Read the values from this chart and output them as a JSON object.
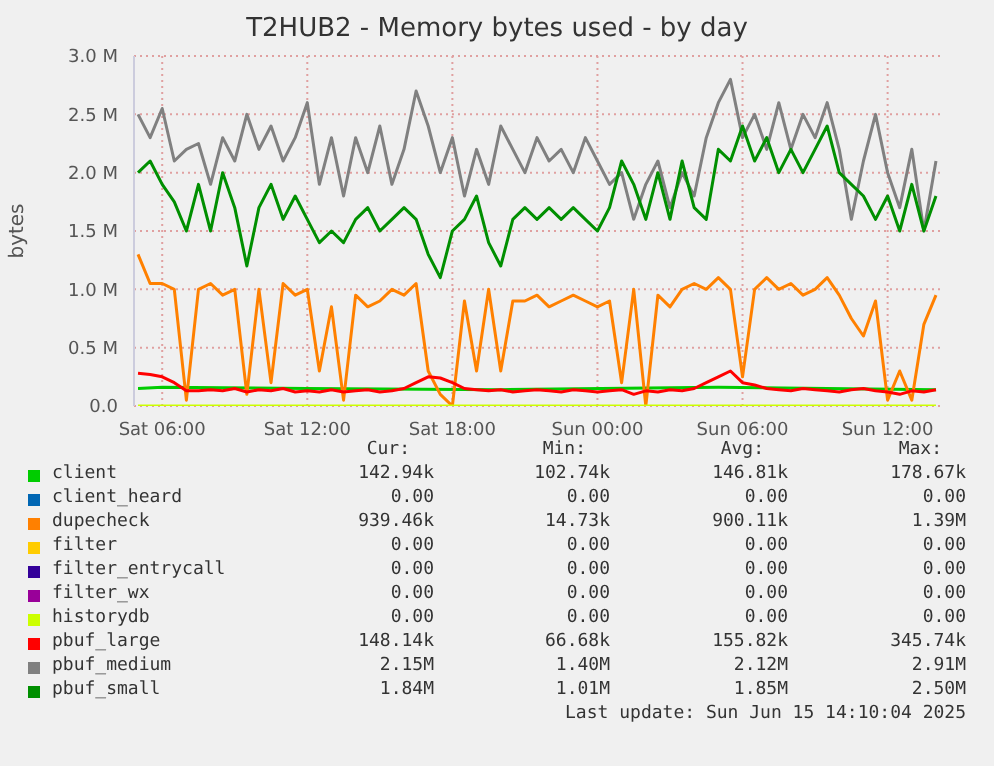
{
  "chart_data": {
    "type": "line",
    "title": "T2HUB2 - Memory bytes used - by day",
    "ylabel": "bytes",
    "xlim": [
      "2025-06-14T04:50",
      "2025-06-15T14:10"
    ],
    "xticks": [
      {
        "value": "2025-06-14T06:00",
        "label": "Sat 06:00"
      },
      {
        "value": "2025-06-14T12:00",
        "label": "Sat 12:00"
      },
      {
        "value": "2025-06-14T18:00",
        "label": "Sat 18:00"
      },
      {
        "value": "2025-06-15T00:00",
        "label": "Sun 00:00"
      },
      {
        "value": "2025-06-15T06:00",
        "label": "Sun 06:00"
      },
      {
        "value": "2025-06-15T12:00",
        "label": "Sun 12:00"
      }
    ],
    "ylim": [
      0,
      3
    ],
    "yticks": [
      {
        "value": 0,
        "label": "0.0"
      },
      {
        "value": 0.5,
        "label": "0.5 M"
      },
      {
        "value": 1,
        "label": "1.0 M"
      },
      {
        "value": 1.5,
        "label": "1.5 M"
      },
      {
        "value": 2,
        "label": "2.0 M"
      },
      {
        "value": 2.5,
        "label": "2.5 M"
      },
      {
        "value": 3,
        "label": "3.0 M"
      }
    ],
    "grid": true,
    "legend": "bottom",
    "x": [
      "2025-06-14T05:00",
      "2025-06-14T05:30",
      "2025-06-14T06:00",
      "2025-06-14T06:30",
      "2025-06-14T07:00",
      "2025-06-14T07:30",
      "2025-06-14T08:00",
      "2025-06-14T08:30",
      "2025-06-14T09:00",
      "2025-06-14T09:30",
      "2025-06-14T10:00",
      "2025-06-14T10:30",
      "2025-06-14T11:00",
      "2025-06-14T11:30",
      "2025-06-14T12:00",
      "2025-06-14T12:30",
      "2025-06-14T13:00",
      "2025-06-14T13:30",
      "2025-06-14T14:00",
      "2025-06-14T14:30",
      "2025-06-14T15:00",
      "2025-06-14T15:30",
      "2025-06-14T16:00",
      "2025-06-14T16:30",
      "2025-06-14T17:00",
      "2025-06-14T17:30",
      "2025-06-14T18:00",
      "2025-06-14T18:30",
      "2025-06-14T19:00",
      "2025-06-14T19:30",
      "2025-06-14T20:00",
      "2025-06-14T20:30",
      "2025-06-14T21:00",
      "2025-06-14T21:30",
      "2025-06-14T22:00",
      "2025-06-14T22:30",
      "2025-06-14T23:00",
      "2025-06-14T23:30",
      "2025-06-15T00:00",
      "2025-06-15T00:30",
      "2025-06-15T01:00",
      "2025-06-15T01:30",
      "2025-06-15T02:00",
      "2025-06-15T02:30",
      "2025-06-15T03:00",
      "2025-06-15T03:30",
      "2025-06-15T04:00",
      "2025-06-15T04:30",
      "2025-06-15T05:00",
      "2025-06-15T05:30",
      "2025-06-15T06:00",
      "2025-06-15T06:30",
      "2025-06-15T07:00",
      "2025-06-15T07:30",
      "2025-06-15T08:00",
      "2025-06-15T08:30",
      "2025-06-15T09:00",
      "2025-06-15T09:30",
      "2025-06-15T10:00",
      "2025-06-15T10:30",
      "2025-06-15T11:00",
      "2025-06-15T11:30",
      "2025-06-15T12:00",
      "2025-06-15T12:30",
      "2025-06-15T13:00",
      "2025-06-15T13:30",
      "2025-06-15T14:00"
    ],
    "series": [
      {
        "name": "client",
        "color": "#00cc00",
        "x": [
          "2025-06-14T05:00",
          "2025-06-14T06:00",
          "2025-06-14T12:00",
          "2025-06-14T20:00",
          "2025-06-15T05:00",
          "2025-06-15T14:00"
        ],
        "values": [
          0.15,
          0.16,
          0.15,
          0.14,
          0.16,
          0.14
        ]
      },
      {
        "name": "client_heard",
        "color": "#0066b3",
        "values": [
          null,
          null,
          null,
          null,
          null,
          null,
          null,
          null,
          null,
          null,
          null,
          null,
          null,
          null,
          null,
          null,
          null,
          null,
          null,
          null,
          null,
          null,
          null,
          null,
          null,
          null,
          null,
          null,
          null,
          null,
          null,
          null,
          null,
          null,
          null,
          null,
          null,
          null,
          null,
          null,
          null,
          null,
          null,
          null,
          null,
          null,
          null,
          null,
          null,
          null,
          null,
          null,
          null,
          null,
          null,
          null,
          null,
          null,
          null,
          null,
          null,
          null,
          null,
          null,
          null,
          null,
          null
        ]
      },
      {
        "name": "dupecheck",
        "color": "#ff8000",
        "values": [
          1.3,
          1.05,
          1.05,
          1.0,
          0.05,
          1.0,
          1.05,
          0.95,
          1.0,
          0.1,
          1.0,
          0.2,
          1.05,
          0.95,
          1.0,
          0.3,
          0.85,
          0.05,
          0.95,
          0.85,
          0.9,
          1.0,
          0.95,
          1.05,
          0.3,
          0.1,
          0.0,
          0.9,
          0.3,
          1.0,
          0.3,
          0.9,
          0.9,
          0.95,
          0.85,
          0.9,
          0.95,
          0.9,
          0.85,
          0.9,
          0.2,
          1.0,
          0.0,
          0.95,
          0.85,
          1.0,
          1.05,
          1.0,
          1.1,
          1.0,
          0.25,
          1.0,
          1.1,
          1.0,
          1.05,
          0.95,
          1.0,
          1.1,
          0.95,
          0.75,
          0.6,
          0.9,
          0.05,
          0.3,
          0.05,
          0.7,
          0.95
        ]
      },
      {
        "name": "filter",
        "color": "#ffcc00",
        "values": [
          null,
          null,
          null,
          null,
          null,
          null,
          null,
          null,
          null,
          null,
          null,
          null,
          null,
          null,
          null,
          null,
          null,
          null,
          null,
          null,
          null,
          null,
          null,
          null,
          null,
          null,
          null,
          null,
          null,
          null,
          null,
          null,
          null,
          null,
          null,
          null,
          null,
          null,
          null,
          null,
          null,
          null,
          null,
          null,
          null,
          null,
          null,
          null,
          null,
          null,
          null,
          null,
          null,
          null,
          null,
          null,
          null,
          null,
          null,
          null,
          null,
          null,
          null,
          null,
          null,
          null,
          null
        ]
      },
      {
        "name": "filter_entrycall",
        "color": "#330099",
        "values": [
          null,
          null,
          null,
          null,
          null,
          null,
          null,
          null,
          null,
          null,
          null,
          null,
          null,
          null,
          null,
          null,
          null,
          null,
          null,
          null,
          null,
          null,
          null,
          null,
          null,
          null,
          null,
          null,
          null,
          null,
          null,
          null,
          null,
          null,
          null,
          null,
          null,
          null,
          null,
          null,
          null,
          null,
          null,
          null,
          null,
          null,
          null,
          null,
          null,
          null,
          null,
          null,
          null,
          null,
          null,
          null,
          null,
          null,
          null,
          null,
          null,
          null,
          null,
          null,
          null,
          null,
          null
        ]
      },
      {
        "name": "filter_wx",
        "color": "#990099",
        "values": [
          null,
          null,
          null,
          null,
          null,
          null,
          null,
          null,
          null,
          null,
          null,
          null,
          null,
          null,
          null,
          null,
          null,
          null,
          null,
          null,
          null,
          null,
          null,
          null,
          null,
          null,
          null,
          null,
          null,
          null,
          null,
          null,
          null,
          null,
          null,
          null,
          null,
          null,
          null,
          null,
          null,
          null,
          null,
          null,
          null,
          null,
          null,
          null,
          null,
          null,
          null,
          null,
          null,
          null,
          null,
          null,
          null,
          null,
          null,
          null,
          null,
          null,
          null,
          null,
          null,
          null,
          null
        ]
      },
      {
        "name": "historydb",
        "color": "#ccff00",
        "x": [
          "2025-06-14T05:00",
          "2025-06-15T14:00"
        ],
        "values": [
          0,
          0
        ]
      },
      {
        "name": "pbuf_large",
        "color": "#ff0000",
        "values": [
          0.28,
          0.27,
          0.25,
          0.2,
          0.13,
          0.13,
          0.14,
          0.13,
          0.15,
          0.12,
          0.14,
          0.13,
          0.15,
          0.12,
          0.13,
          0.12,
          0.14,
          0.12,
          0.13,
          0.14,
          0.12,
          0.13,
          0.15,
          0.2,
          0.25,
          0.24,
          0.2,
          0.15,
          0.14,
          0.13,
          0.14,
          0.12,
          0.13,
          0.14,
          0.13,
          0.12,
          0.14,
          0.13,
          0.12,
          0.13,
          0.14,
          0.1,
          0.13,
          0.12,
          0.14,
          0.13,
          0.15,
          0.2,
          0.25,
          0.3,
          0.2,
          0.18,
          0.15,
          0.14,
          0.13,
          0.15,
          0.14,
          0.13,
          0.12,
          0.14,
          0.15,
          0.13,
          0.12,
          0.1,
          0.13,
          0.12,
          0.14
        ]
      },
      {
        "name": "pbuf_medium",
        "color": "#808080",
        "values": [
          2.5,
          2.3,
          2.55,
          2.1,
          2.2,
          2.25,
          1.9,
          2.3,
          2.1,
          2.5,
          2.2,
          2.4,
          2.1,
          2.3,
          2.6,
          1.9,
          2.3,
          1.8,
          2.3,
          2.0,
          2.4,
          1.9,
          2.2,
          2.7,
          2.4,
          2.0,
          2.3,
          1.8,
          2.2,
          1.9,
          2.4,
          2.2,
          2.0,
          2.3,
          2.1,
          2.2,
          2.0,
          2.3,
          2.1,
          1.9,
          2.0,
          1.6,
          1.9,
          2.1,
          1.7,
          2.0,
          1.8,
          2.3,
          2.6,
          2.8,
          2.3,
          2.5,
          2.2,
          2.6,
          2.2,
          2.5,
          2.3,
          2.6,
          2.2,
          1.6,
          2.1,
          2.5,
          2.0,
          1.7,
          2.2,
          1.5,
          2.1
        ]
      },
      {
        "name": "pbuf_small",
        "color": "#008f00",
        "values": [
          2.0,
          2.1,
          1.9,
          1.75,
          1.5,
          1.9,
          1.5,
          2.0,
          1.7,
          1.2,
          1.7,
          1.9,
          1.6,
          1.8,
          1.6,
          1.4,
          1.5,
          1.4,
          1.6,
          1.7,
          1.5,
          1.6,
          1.7,
          1.6,
          1.3,
          1.1,
          1.5,
          1.6,
          1.8,
          1.4,
          1.2,
          1.6,
          1.7,
          1.6,
          1.7,
          1.6,
          1.7,
          1.6,
          1.5,
          1.7,
          2.1,
          1.9,
          1.6,
          2.0,
          1.6,
          2.1,
          1.7,
          1.6,
          2.2,
          2.1,
          2.4,
          2.1,
          2.3,
          2.0,
          2.2,
          2.0,
          2.2,
          2.4,
          2.0,
          1.9,
          1.8,
          1.6,
          1.8,
          1.5,
          1.9,
          1.5,
          1.8
        ]
      }
    ],
    "annotations": [
      "Cur:",
      "Min:",
      "Avg:",
      "Max:",
      "142.94k",
      "102.74k",
      "146.81k",
      "178.67k",
      "0.00",
      "0.00",
      "0.00",
      "0.00",
      "939.46k",
      "14.73k",
      "900.11k",
      "1.39M",
      "0.00",
      "0.00",
      "0.00",
      "0.00",
      "0.00",
      "0.00",
      "0.00",
      "0.00",
      "0.00",
      "0.00",
      "0.00",
      "0.00",
      "0.00",
      "0.00",
      "0.00",
      "0.00",
      "148.14k",
      "66.68k",
      "155.82k",
      "345.74k",
      "2.15M",
      "1.40M",
      "2.12M",
      "2.91M",
      "1.84M",
      "1.01M",
      "1.85M",
      "2.50M",
      "Last update: Sun Jun 15 14:10:04 2025"
    ]
  }
}
